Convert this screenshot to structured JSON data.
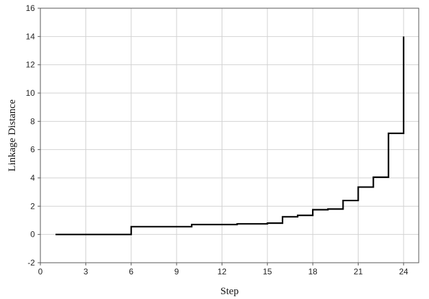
{
  "chart_data": {
    "type": "line",
    "style": "step",
    "title": "",
    "xlabel": "Step",
    "ylabel": "Linkage Distance",
    "xlim": [
      0,
      25
    ],
    "ylim": [
      -2,
      16
    ],
    "xticks": [
      0,
      3,
      6,
      9,
      12,
      15,
      18,
      21,
      24
    ],
    "yticks": [
      -2,
      0,
      2,
      4,
      6,
      8,
      10,
      12,
      14,
      16
    ],
    "grid": true,
    "legend": "none",
    "series": [
      {
        "x": [
          1,
          2,
          3,
          4,
          5,
          6,
          7,
          8,
          9,
          10,
          11,
          12,
          13,
          14,
          15,
          16,
          17,
          18,
          19,
          20,
          21,
          22,
          23,
          24
        ],
        "y": [
          0.0,
          0.0,
          0.0,
          0.0,
          0.0,
          0.55,
          0.55,
          0.55,
          0.55,
          0.7,
          0.7,
          0.7,
          0.75,
          0.75,
          0.8,
          1.25,
          1.35,
          1.75,
          1.8,
          2.4,
          3.35,
          4.05,
          7.15,
          14.0
        ],
        "color": "#000000"
      }
    ],
    "colors": {
      "line": "#000000",
      "grid": "#d2d2d2",
      "axis": "#555555",
      "background": "#ffffff"
    }
  }
}
